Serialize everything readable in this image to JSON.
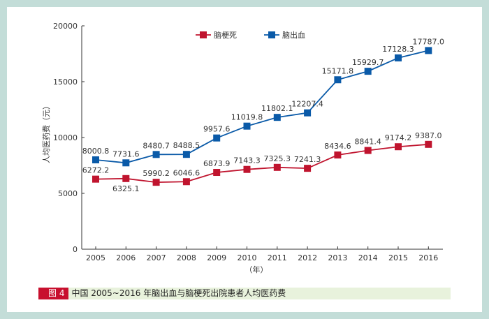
{
  "chart_data": {
    "type": "line",
    "categories": [
      "2005",
      "2006",
      "2007",
      "2008",
      "2009",
      "2010",
      "2011",
      "2012",
      "2013",
      "2014",
      "2015",
      "2016"
    ],
    "series": [
      {
        "name": "脑梗死",
        "color": "#c0142e",
        "marker": "square",
        "values": [
          6272.2,
          6325.1,
          5990.2,
          6046.6,
          6873.9,
          7143.3,
          7325.3,
          7241.3,
          8434.6,
          8841.4,
          9174.2,
          9387.0
        ],
        "labels": [
          "6272.2",
          "6325.1",
          "5990.2",
          "6046.6",
          "6873.9",
          "7143.3",
          "7325.3",
          "7241.3",
          "8434.6",
          "8841.4",
          "9174.2",
          "9387.0"
        ]
      },
      {
        "name": "脑出血",
        "color": "#0a5aa8",
        "marker": "square",
        "values": [
          8000.8,
          7731.6,
          8480.7,
          8488.5,
          9957.6,
          11019.8,
          11802.1,
          12207.4,
          15171.8,
          15929.7,
          17128.3,
          17787.0
        ],
        "labels": [
          "8000.8",
          "7731.6",
          "8480.7",
          "8488.5",
          "9957.6",
          "11019.8",
          "11802.1",
          "12207.4",
          "15171.8",
          "15929.7",
          "17128.3",
          "17787.0"
        ]
      }
    ],
    "ylim": [
      0,
      20000
    ],
    "yticks": [
      "0",
      "5000",
      "10000",
      "15000",
      "20000"
    ],
    "ylabel": "人均医药费（元）",
    "xlabel": "（年）",
    "grid": false,
    "legend": "top-center"
  },
  "caption": {
    "figure_number": "图 4",
    "text": "中国 2005~2016 年脑出血与脑梗死出院患者人均医药费"
  }
}
